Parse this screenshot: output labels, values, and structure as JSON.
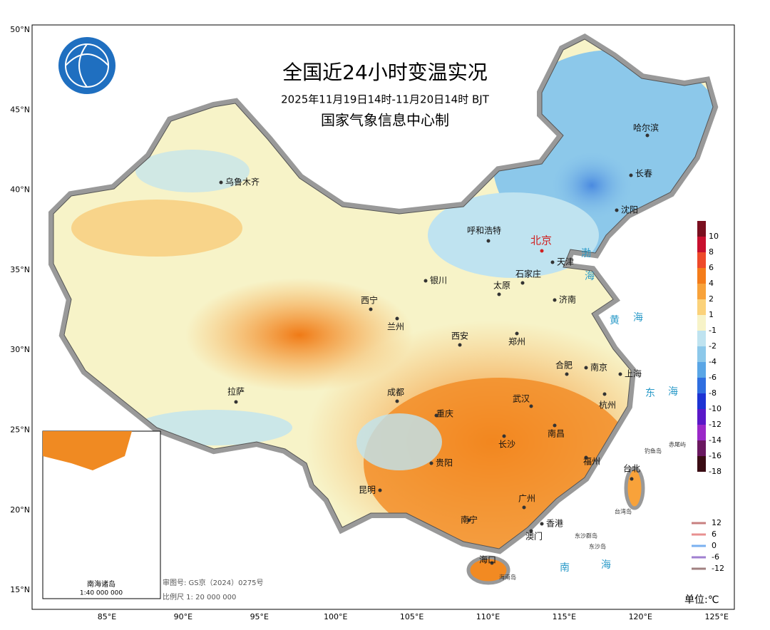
{
  "header": {
    "title": "全国近24小时变温实况",
    "subtitle": "2025年11月19日14时-11月20日14时 BJT",
    "agency": "国家气象信息中心制"
  },
  "lat_labels": [
    "50°N",
    "45°N",
    "40°N",
    "35°N",
    "30°N",
    "25°N",
    "20°N",
    "15°N"
  ],
  "lon_labels": [
    "85°E",
    "90°E",
    "95°E",
    "100°E",
    "105°E",
    "110°E",
    "115°E",
    "120°E",
    "125°E"
  ],
  "cities": [
    {
      "name": "乌鲁木齐"
    },
    {
      "name": "哈尔滨"
    },
    {
      "name": "长春"
    },
    {
      "name": "沈阳"
    },
    {
      "name": "呼和浩特"
    },
    {
      "name": "北京",
      "capital": true
    },
    {
      "name": "天津"
    },
    {
      "name": "石家庄"
    },
    {
      "name": "银川"
    },
    {
      "name": "太原"
    },
    {
      "name": "济南"
    },
    {
      "name": "西宁"
    },
    {
      "name": "兰州"
    },
    {
      "name": "西安"
    },
    {
      "name": "郑州"
    },
    {
      "name": "合肥"
    },
    {
      "name": "南京"
    },
    {
      "name": "上海"
    },
    {
      "name": "拉萨"
    },
    {
      "name": "成都"
    },
    {
      "name": "武汉"
    },
    {
      "name": "杭州"
    },
    {
      "name": "重庆"
    },
    {
      "name": "南昌"
    },
    {
      "name": "长沙"
    },
    {
      "name": "福州"
    },
    {
      "name": "贵阳"
    },
    {
      "name": "台北"
    },
    {
      "name": "昆明"
    },
    {
      "name": "南宁"
    },
    {
      "name": "广州"
    },
    {
      "name": "香港"
    },
    {
      "name": "澳门"
    },
    {
      "name": "海口"
    }
  ],
  "seas": [
    "渤",
    "海",
    "黄",
    "海",
    "东",
    "海",
    "南",
    "海"
  ],
  "islands": [
    "钓鱼岛",
    "赤尾屿",
    "台湾岛",
    "东沙群岛",
    "东沙岛",
    "海南岛"
  ],
  "inset": {
    "title": "南海诸岛",
    "scale": "1:40 000 000"
  },
  "footer": {
    "approval": "审图号: GS京（2024）0275号",
    "scale": "比例尺 1: 20 000 000",
    "unit": "单位:℃"
  },
  "color_legend": [
    {
      "label": 10,
      "color": "#7a0f1f"
    },
    {
      "label": 8,
      "color": "#c8102e"
    },
    {
      "label": 6,
      "color": "#ee4a2a"
    },
    {
      "label": 4,
      "color": "#f47c1a"
    },
    {
      "label": 2,
      "color": "#f8a23a"
    },
    {
      "label": 1,
      "color": "#fbd27a"
    },
    {
      "label": -1,
      "color": "#f7f3c8"
    },
    {
      "label": -2,
      "color": "#bfe3f0"
    },
    {
      "label": -4,
      "color": "#8cc8ea"
    },
    {
      "label": -6,
      "color": "#5aa6e6"
    },
    {
      "label": -8,
      "color": "#2f6ee0"
    },
    {
      "label": -10,
      "color": "#1d33d4"
    },
    {
      "label": -12,
      "color": "#5a18c8"
    },
    {
      "label": -14,
      "color": "#9a28c8"
    },
    {
      "label": -16,
      "color": "#6a1860"
    },
    {
      "label": -18,
      "color": "#3a0c14"
    }
  ],
  "line_legend": [
    {
      "label": 12,
      "color": "#c88080"
    },
    {
      "label": 6,
      "color": "#e89090"
    },
    {
      "label": 0,
      "color": "#7ab0f0"
    },
    {
      "label": -6,
      "color": "#a080d0"
    },
    {
      "label": -12,
      "color": "#a08080"
    }
  ]
}
